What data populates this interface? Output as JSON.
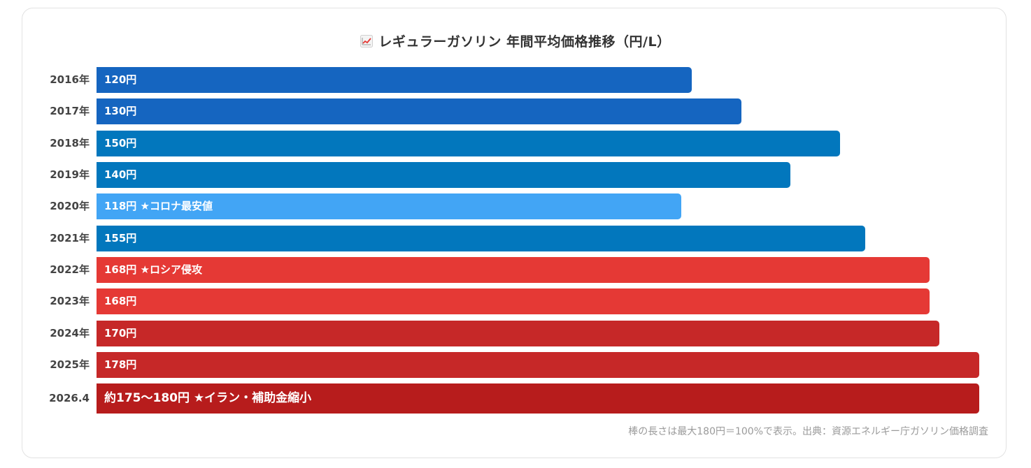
{
  "chart_data": {
    "type": "bar",
    "orientation": "horizontal",
    "title": "レギュラーガソリン 年間平均価格推移（円/L）",
    "title_icon": "chart-increasing-icon",
    "max_value": 180,
    "categories": [
      "2016年",
      "2017年",
      "2018年",
      "2019年",
      "2020年",
      "2021年",
      "2022年",
      "2023年",
      "2024年",
      "2025年",
      "2026.4"
    ],
    "values": [
      120,
      130,
      150,
      140,
      118,
      155,
      168,
      168,
      170,
      178,
      178
    ],
    "labels": [
      "120円",
      "130円",
      "150円",
      "140円",
      "118円 ★コロナ最安値",
      "155円",
      "168円 ★ロシア侵攻",
      "168円",
      "170円",
      "178円",
      "約175〜180円 ★イラン・補助金縮小"
    ],
    "colors": [
      "#1565c0",
      "#1565c0",
      "#0277bd",
      "#0277bd",
      "#42a5f5",
      "#0277bd",
      "#e53935",
      "#e53935",
      "#c62828",
      "#c62828",
      "#b71c1c"
    ],
    "footnote": "棒の長さは最大180円＝100%で表示。出典：資源エネルギー庁ガソリン価格調査"
  }
}
